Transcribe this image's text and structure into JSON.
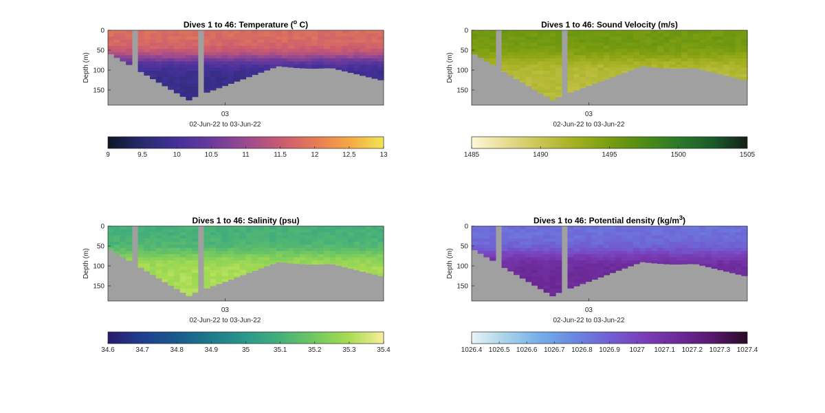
{
  "chart_data": [
    {
      "type": "heatmap",
      "title": "Dives 1 to 46: Temperature (",
      "title_sup": "o",
      "title_end": " C)",
      "ylabel": "Depth (m)",
      "yticks": [
        "0",
        "50",
        "100",
        "150"
      ],
      "ylim": [
        0,
        188
      ],
      "xticks": [
        "03"
      ],
      "xlabel": "02-Jun-22 to 03-Jun-22",
      "colorbar_ticks": [
        "9",
        "9.5",
        "10",
        "10.5",
        "11",
        "11.5",
        "12",
        "12.5",
        "13"
      ],
      "clim": [
        9,
        13
      ],
      "colormap": [
        "#0d1626",
        "#282a6e",
        "#44309a",
        "#6a3a9c",
        "#9a4a8e",
        "#c85a72",
        "#e67a56",
        "#f4a844",
        "#f0e554"
      ],
      "profile": {
        "surface": 11.8,
        "thermocline_depth": 70,
        "deep": 9.8
      },
      "gap_color": "#a0a0a0"
    },
    {
      "type": "heatmap",
      "title": "Dives 1 to 46: Sound Velocity (m/s)",
      "ylabel": "Depth (m)",
      "yticks": [
        "0",
        "50",
        "100",
        "150"
      ],
      "ylim": [
        0,
        188
      ],
      "xticks": [
        "03"
      ],
      "xlabel": "02-Jun-22 to 03-Jun-22",
      "colorbar_ticks": [
        "1485",
        "1490",
        "1495",
        "1500",
        "1505"
      ],
      "clim": [
        1485,
        1505
      ],
      "colormap": [
        "#fdf8d8",
        "#e6dc92",
        "#c8c552",
        "#a3b020",
        "#7a9c10",
        "#4e8c16",
        "#2a7a2a",
        "#1c5a2a",
        "#131f17"
      ],
      "profile": {
        "surface": 1495.5,
        "thermocline_depth": 70,
        "deep": 1491.2
      },
      "gap_color": "#a0a0a0"
    },
    {
      "type": "heatmap",
      "title": "Dives 1 to 46: Salinity (psu)",
      "ylabel": "Depth (m)",
      "yticks": [
        "0",
        "50",
        "100",
        "150"
      ],
      "ylim": [
        0,
        188
      ],
      "xticks": [
        "03"
      ],
      "xlabel": "02-Jun-22 to 03-Jun-22",
      "colorbar_ticks": [
        "34.6",
        "34.7",
        "34.8",
        "34.9",
        "35",
        "35.1",
        "35.2",
        "35.3",
        "35.4"
      ],
      "clim": [
        34.6,
        35.4
      ],
      "colormap": [
        "#2a1a6a",
        "#1f3f8e",
        "#195a8c",
        "#1e7a8a",
        "#2c988a",
        "#46b07a",
        "#72c860",
        "#a8dc52",
        "#f6ef9c"
      ],
      "profile": {
        "surface": 35.1,
        "thermocline_depth": 70,
        "deep": 35.3
      },
      "gap_color": "#a0a0a0"
    },
    {
      "type": "heatmap",
      "title": "Dives 1 to 46: Potential density (kg/m",
      "title_sup": "3",
      "title_end": ")",
      "ylabel": "Depth (m)",
      "yticks": [
        "0",
        "50",
        "100",
        "150"
      ],
      "ylim": [
        0,
        188
      ],
      "xticks": [
        "03"
      ],
      "xlabel": "02-Jun-22 to 03-Jun-22",
      "colorbar_ticks": [
        "1026.4",
        "1026.5",
        "1026.6",
        "1026.7",
        "1026.8",
        "1026.9",
        "1027",
        "1027.1",
        "1027.2",
        "1027.3",
        "1027.4"
      ],
      "clim": [
        1026.4,
        1027.4
      ],
      "colormap": [
        "#e8f4f6",
        "#a8d2ea",
        "#74aee8",
        "#6a86e0",
        "#7060d4",
        "#7a3eb8",
        "#6c2a98",
        "#56186e",
        "#2a0a24"
      ],
      "profile": {
        "surface": 1026.85,
        "thermocline_depth": 70,
        "deep": 1027.15
      },
      "gap_color": "#a0a0a0"
    }
  ]
}
